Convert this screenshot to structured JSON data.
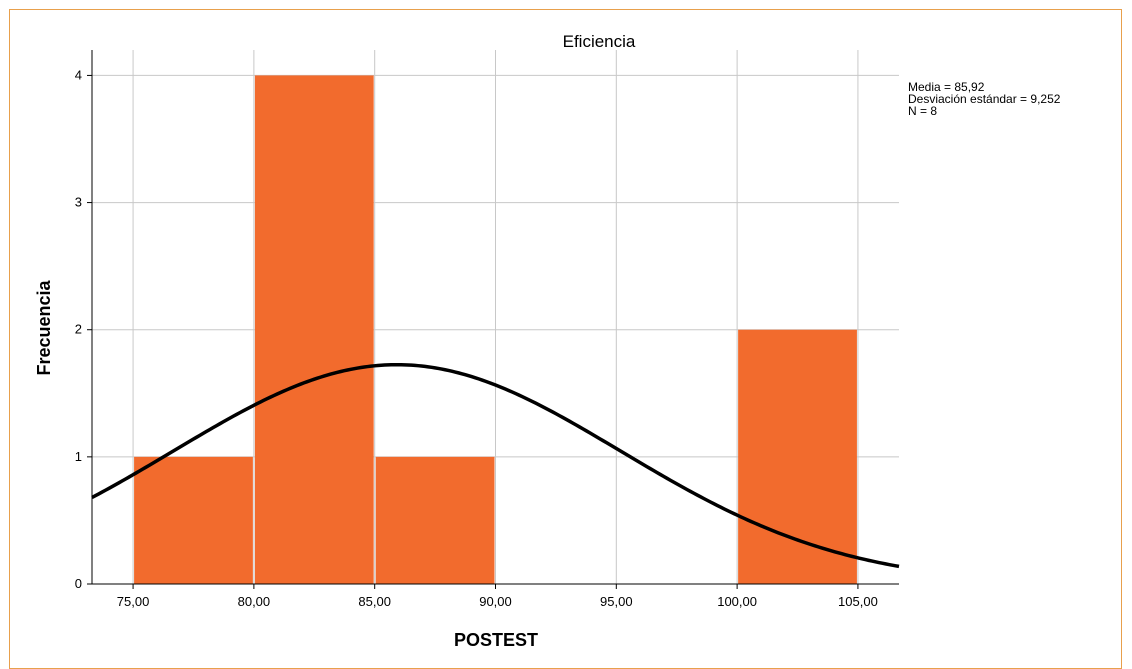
{
  "chart_data": {
    "type": "bar",
    "title": "Eficiencia",
    "xlabel": "POSTEST",
    "ylabel": "Frecuencia",
    "bins": [
      {
        "from": 75,
        "to": 80,
        "count": 1
      },
      {
        "from": 80,
        "to": 85,
        "count": 4
      },
      {
        "from": 85,
        "to": 90,
        "count": 1
      },
      {
        "from": 90,
        "to": 95,
        "count": 0
      },
      {
        "from": 95,
        "to": 100,
        "count": 0
      },
      {
        "from": 100,
        "to": 105,
        "count": 2
      }
    ],
    "xticks": [
      "75,00",
      "80,00",
      "85,00",
      "90,00",
      "95,00",
      "100,00",
      "105,00"
    ],
    "xtick_values": [
      75,
      80,
      85,
      90,
      95,
      100,
      105
    ],
    "yticks": [
      "0",
      "1",
      "2",
      "3",
      "4"
    ],
    "ytick_values": [
      0,
      1,
      2,
      3,
      4
    ],
    "xlim": [
      73.3,
      106.7
    ],
    "ylim": [
      0,
      4.2
    ],
    "grid": true,
    "bar_color": "#f26b2d",
    "curve_color": "#000000",
    "frame_color": "#e8a04c",
    "normal_curve": {
      "mean": 85.92,
      "sd": 9.252,
      "n": 8,
      "bin_width": 5
    },
    "stats": {
      "line1": "Media = 85,92",
      "line2": "Desviación estándar = 9,252",
      "line3": "N = 8"
    }
  }
}
